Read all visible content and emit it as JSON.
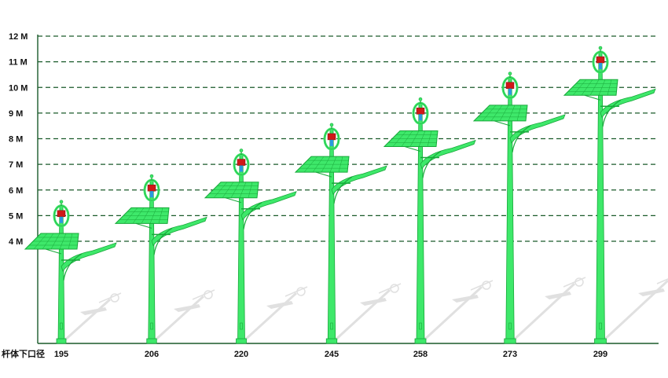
{
  "chart_data": {
    "type": "diagram",
    "y_axis": {
      "unit": "M",
      "range": [
        3,
        12
      ],
      "ticks": [
        "4 M",
        "5 M",
        "6 M",
        "7 M",
        "8 M",
        "9 M",
        "10 M",
        "11 M",
        "12 M"
      ],
      "tick_values": [
        4,
        5,
        6,
        7,
        8,
        9,
        10,
        11,
        12
      ],
      "grid": "dashed"
    },
    "x_caption": "杆体下口径",
    "poles": [
      {
        "diameter": "195",
        "height_m": 4
      },
      {
        "diameter": "206",
        "height_m": 5
      },
      {
        "diameter": "220",
        "height_m": 6
      },
      {
        "diameter": "245",
        "height_m": 7
      },
      {
        "diameter": "258",
        "height_m": 8
      },
      {
        "diameter": "273",
        "height_m": 9
      },
      {
        "diameter": "299",
        "height_m": 10
      }
    ]
  },
  "colors": {
    "pole": "#3ee86a",
    "pole_dark": "#18a83a",
    "grid": "#1a5a2a",
    "turbine_head": "#d01818",
    "turbine_blade": "#2a9adf",
    "shadow": "#c8c8c8"
  }
}
